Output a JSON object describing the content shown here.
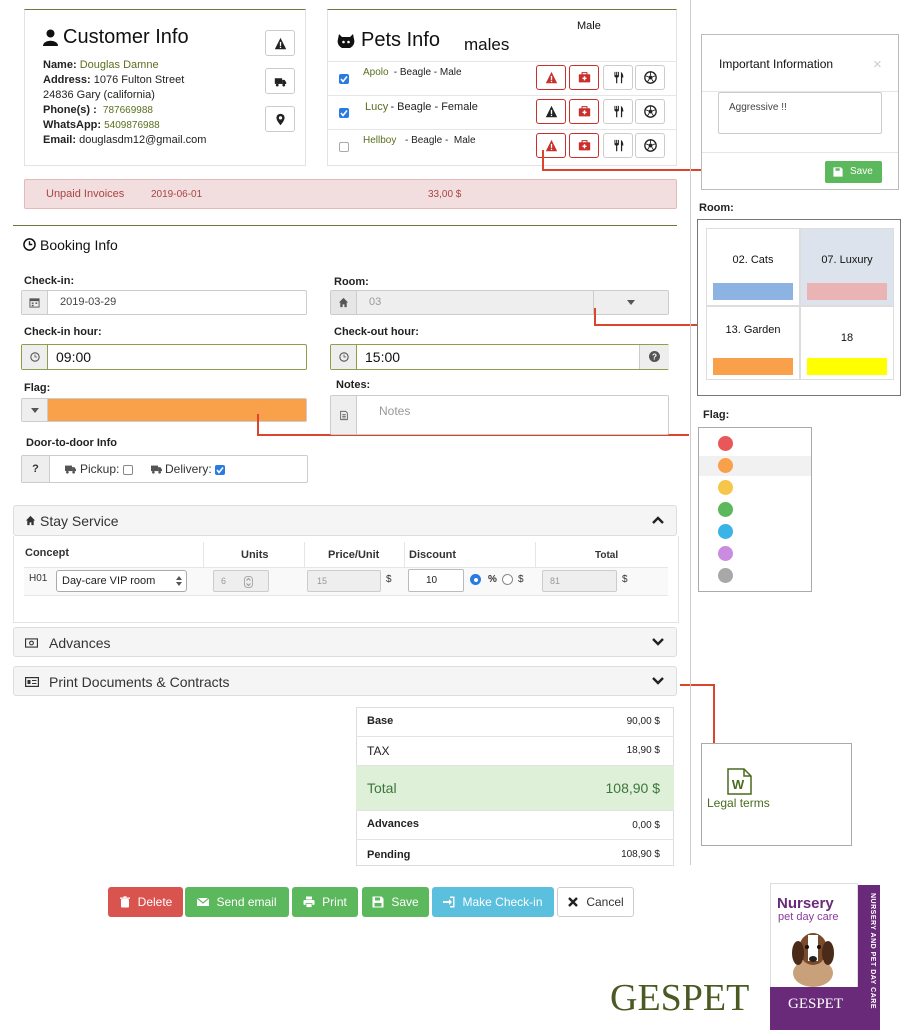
{
  "customer": {
    "title": "Customer Info",
    "name_label": "Name:",
    "name": "Douglas Damne",
    "address_label": "Address:",
    "address1": "1076 Fulton Street",
    "address2": "24836  Gary (california)",
    "phone_label": "Phone(s) :",
    "phone": "787669988",
    "whatsapp_label": "WhatsApp:",
    "whatsapp": "5409876988",
    "email_label": "Email:",
    "email": "douglasdm12@gmail.com"
  },
  "pets": {
    "title": "Pets Info",
    "title_overlap": "males",
    "header_note": "Male",
    "items": [
      {
        "name": "Apolo",
        "desc": " - Beagle - Male",
        "checked": true
      },
      {
        "name": "Lucy",
        "desc": " - Beagle - Female",
        "checked": true
      },
      {
        "name": "Hellboy",
        "desc": " - Beagle -  Male",
        "checked": false
      }
    ]
  },
  "invoice": {
    "label": "Unpaid Invoices",
    "date": "2019-06-01",
    "amount": "33,00 $"
  },
  "booking": {
    "title": "Booking Info",
    "checkin_label": "Check-in:",
    "checkin": "2019-03-29",
    "room_label": "Room:",
    "room": "03",
    "checkin_hour_label": "Check-in hour:",
    "checkin_hour": "09:00",
    "checkout_hour_label": "Check-out hour:",
    "checkout_hour": "15:00",
    "flag_label": "Flag:",
    "flag_color": "#f9a04b",
    "notes_label": "Notes:",
    "notes_placeholder": "Notes",
    "door_label": "Door-to-door Info",
    "door_q": "?",
    "pickup_label": "Pickup:",
    "delivery_label": "Delivery:"
  },
  "stay": {
    "title": "Stay Service",
    "headers": {
      "concept": "Concept",
      "units": "Units",
      "price": "Price/Unit",
      "discount": "Discount",
      "total": "Total"
    },
    "code": "H01",
    "concept": "Day-care VIP room",
    "units": "6",
    "price": "15",
    "price_cur": "$",
    "discount": "10",
    "pct": "%",
    "dol": "$",
    "total": "81",
    "total_cur": "$"
  },
  "advances": {
    "title": "Advances"
  },
  "print_docs": {
    "title": "Print Documents & Contracts"
  },
  "summary": {
    "base_label": "Base",
    "base": "90,00 $",
    "tax_label": "TAX",
    "tax": "18,90 $",
    "total_label": "Total",
    "total": "108,90 $",
    "advances_label": "Advances",
    "advances": "0,00 $",
    "pending_label": "Pending",
    "pending": "108,90 $"
  },
  "actions": {
    "delete": "Delete",
    "email": "Send email",
    "print": "Print",
    "save": "Save",
    "checkin": "Make Check-in",
    "cancel": "Cancel"
  },
  "important": {
    "title": "Important Information",
    "close": "×",
    "text": "Aggressive !!",
    "save": "Save"
  },
  "room_popup": {
    "label": "Room:",
    "rooms": [
      {
        "name": "02. Cats",
        "color": "#8db3e2"
      },
      {
        "name": "07. Luxury",
        "color": "#eab4b4"
      },
      {
        "name": "13. Garden",
        "color": "#f9a04b"
      },
      {
        "name": "18",
        "color": "#ffff00"
      }
    ]
  },
  "flag_popup": {
    "label": "Flag:",
    "colors": [
      "#e8575a",
      "#f9a04b",
      "#f5c64a",
      "#5cb85c",
      "#3ab4e6",
      "#c98ce0",
      "#a8a8a8"
    ]
  },
  "legal": {
    "label": "Legal terms",
    "icon_letter": "W"
  },
  "brand": {
    "logo": "GESPET",
    "box_title": "Nursery",
    "box_sub": "pet day care",
    "box_side": "NURSERY AND PET DAY CARE",
    "box_brand": "GESPET"
  },
  "colors": {
    "green": "#5cb85c",
    "red": "#d9534f",
    "blue": "#5bc0de",
    "accent_olive": "#6b7a3a"
  }
}
